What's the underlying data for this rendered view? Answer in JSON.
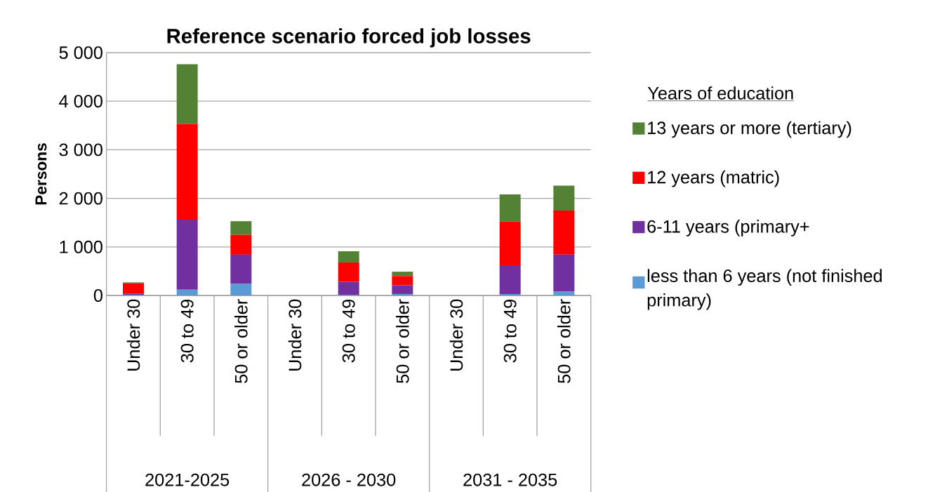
{
  "chart_data": {
    "type": "bar",
    "title": "Reference scenario forced job losses",
    "ylabel": "Persons",
    "legend_title": "Years of education",
    "categories": [
      "Under 30",
      "30 to 49",
      "50 or older",
      "Under 30",
      "30 to 49",
      "50 or older",
      "Under 30",
      "30 to 49",
      "50 or older"
    ],
    "annotations": [
      "2021-2025",
      "2026 - 2030",
      "2031 - 2035"
    ],
    "stacked": true,
    "ylim": [
      0,
      5000
    ],
    "yticks": [
      0,
      {
        "value": 1000,
        "label": "1 000"
      },
      {
        "value": 2000,
        "label": "2 000"
      },
      {
        "value": 3000,
        "label": "3 000"
      },
      {
        "value": 4000,
        "label": "4 000"
      },
      {
        "value": 5000,
        "label": "5 000"
      }
    ],
    "grid": "y",
    "legend": "right",
    "series": [
      {
        "name": "less than 6 years (not finished primary)",
        "color": "#5b9bd5",
        "values": [
          10,
          120,
          240,
          null,
          10,
          30,
          null,
          30,
          80
        ]
      },
      {
        "name": "6-11 years (primary+",
        "color": "#7030a0",
        "values": [
          30,
          1440,
          600,
          null,
          270,
          180,
          null,
          590,
          760
        ]
      },
      {
        "name": "12 years (matric)",
        "color": "#ff0000",
        "values": [
          210,
          1970,
          410,
          null,
          400,
          190,
          null,
          900,
          910
        ]
      },
      {
        "name": "13 years or more (tertiary)",
        "color": "#548235",
        "values": [
          20,
          1230,
          280,
          null,
          230,
          90,
          null,
          560,
          510
        ]
      }
    ]
  }
}
